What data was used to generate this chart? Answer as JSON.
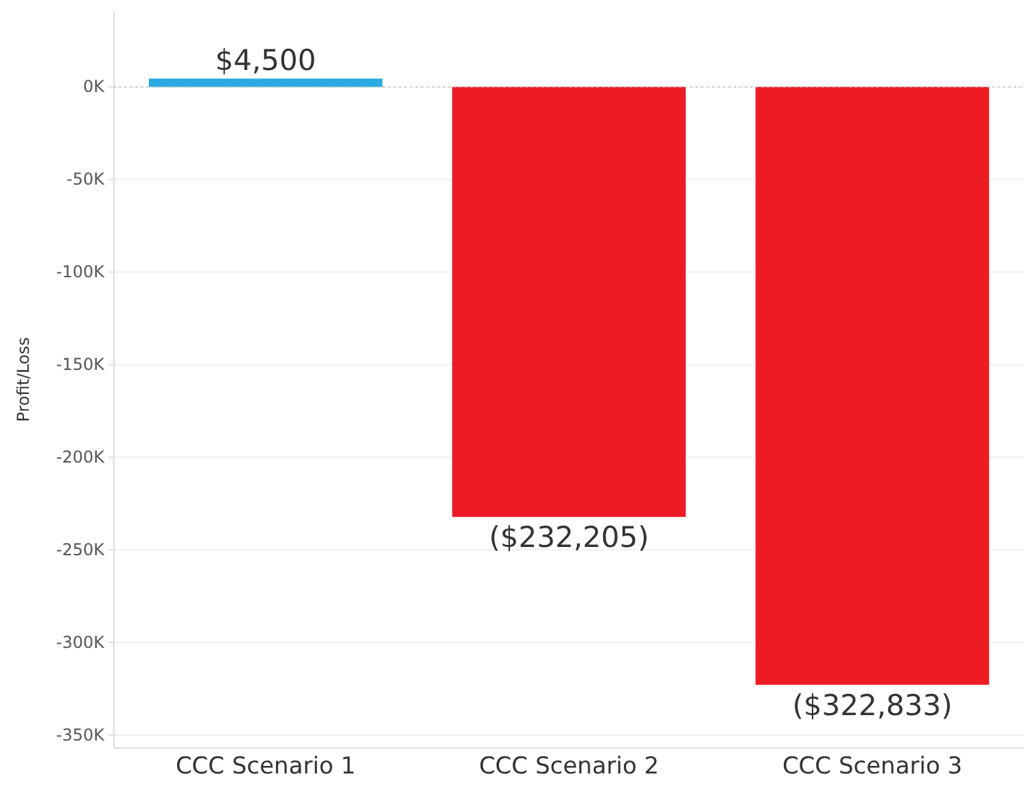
{
  "chart_data": {
    "type": "bar",
    "ylabel": "Profit/Loss",
    "categories": [
      "CCC Scenario 1",
      "CCC Scenario 2",
      "CCC Scenario 3"
    ],
    "values": [
      4500,
      -232205,
      -322833
    ],
    "colors": [
      "#29abe2",
      "#ed1c24",
      "#ed1c24"
    ],
    "value_labels": [
      "$4,500",
      "($232,205)",
      "($322,833)"
    ],
    "ylim": [
      -357000,
      41000
    ],
    "yticks": [
      {
        "value": 0,
        "label": "0K"
      },
      {
        "value": -50000,
        "label": "-50K"
      },
      {
        "value": -100000,
        "label": "-100K"
      },
      {
        "value": -150000,
        "label": "-150K"
      },
      {
        "value": -200000,
        "label": "-200K"
      },
      {
        "value": -250000,
        "label": "-250K"
      },
      {
        "value": -300000,
        "label": "-300K"
      },
      {
        "value": -350000,
        "label": "-350K"
      }
    ],
    "grid": "y",
    "ref_lines": [
      {
        "axis": "y",
        "value": 0,
        "line_style": "dotted",
        "color": "#bbbbbb"
      }
    ]
  }
}
